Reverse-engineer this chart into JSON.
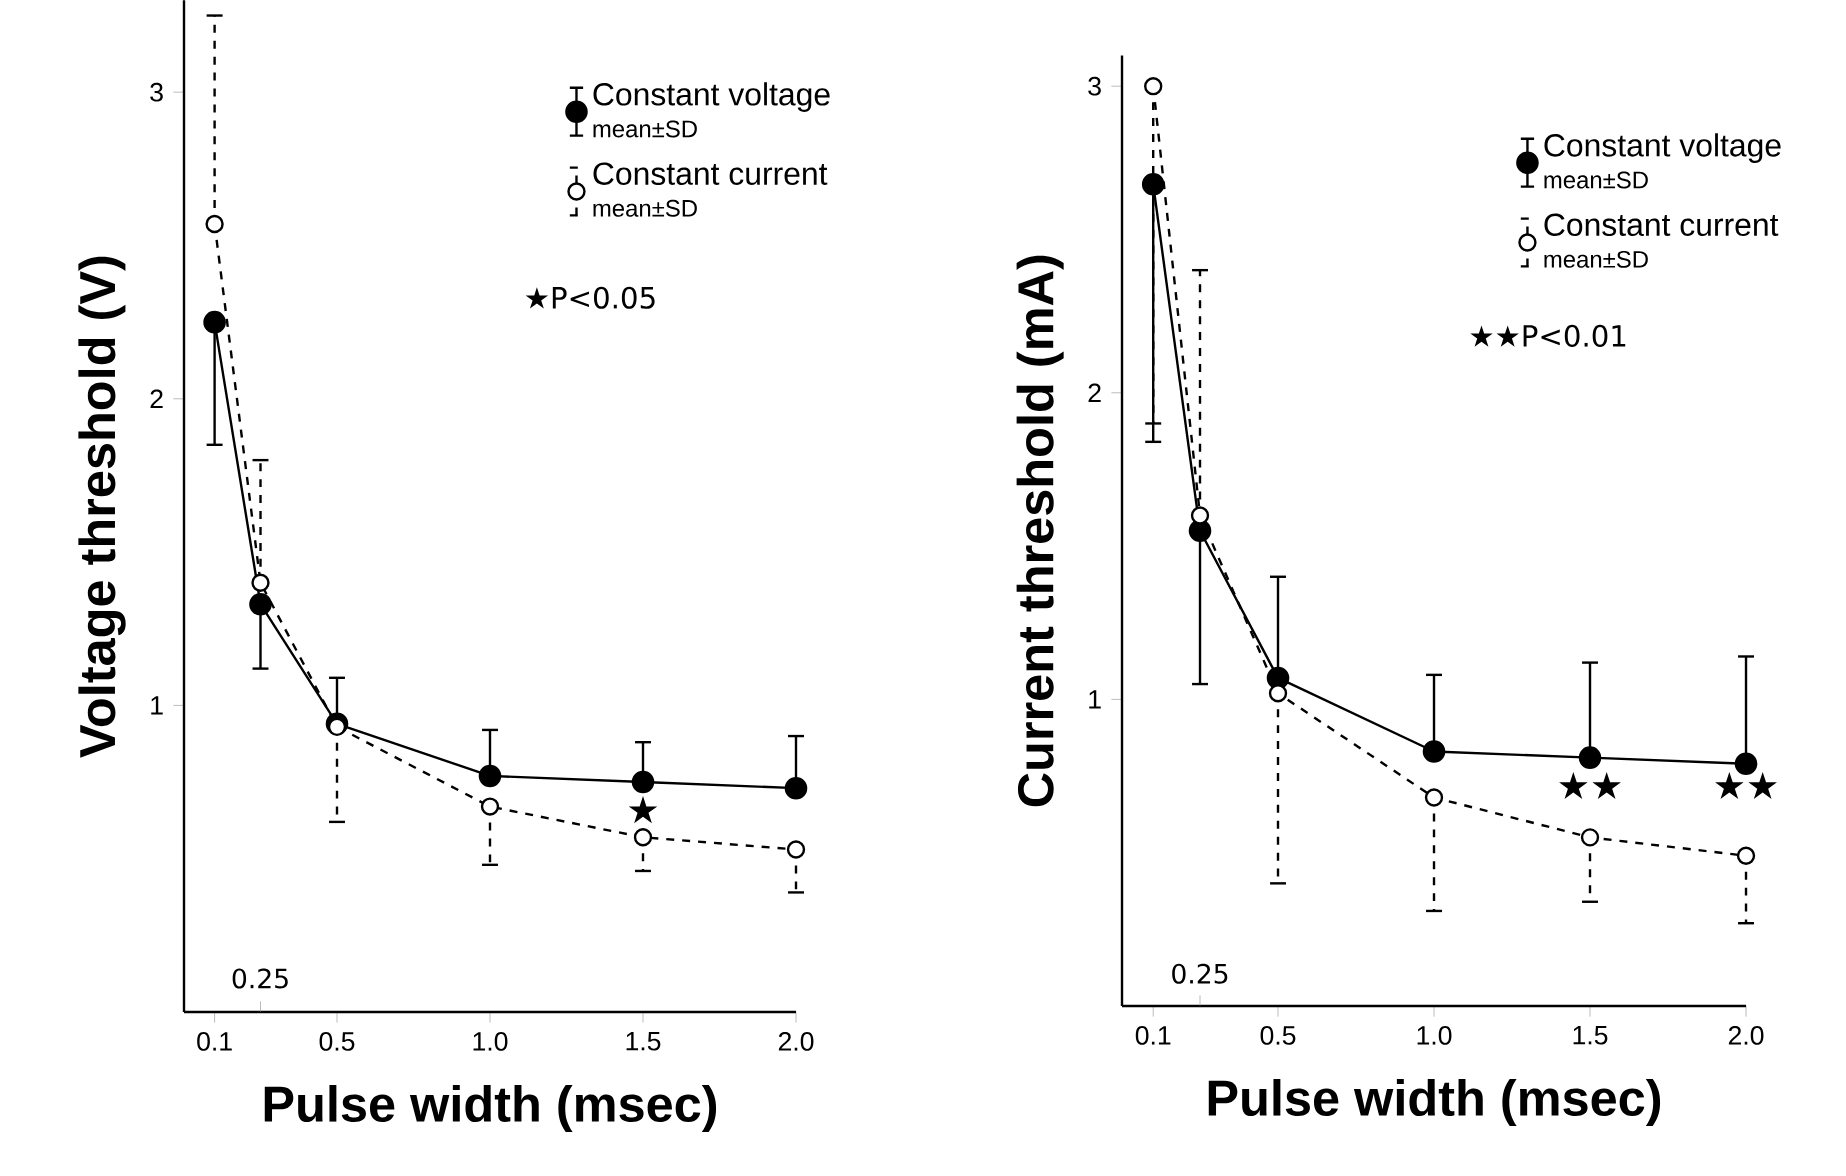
{
  "chart_data": [
    {
      "type": "line",
      "xlabel": "Pulse width (msec)",
      "ylabel": "Voltage threshold (V)",
      "xlim": [
        0,
        2.0
      ],
      "ylim": [
        0,
        3.3
      ],
      "xticks": [
        0.1,
        {
          "value": 0.25,
          "label": null
        },
        0.5,
        {
          "value": 1,
          "label": "1.0"
        },
        1.5,
        {
          "value": 2,
          "label": "2.0"
        }
      ],
      "yticks": [
        1,
        2,
        3
      ],
      "legend": "top right",
      "marker": "circle",
      "series": [
        {
          "name": "Constant voltage",
          "color": "#000000",
          "line_style": "solid",
          "x": [
            0.1,
            0.25,
            0.5,
            1.0,
            1.5,
            2.0
          ],
          "values": [
            2.25,
            1.33,
            0.94,
            0.77,
            0.75,
            0.73
          ],
          "errors": [
            [
              1.85,
              2.25
            ],
            [
              1.12,
              1.33
            ],
            [
              0.94,
              1.09
            ],
            [
              0.77,
              0.92
            ],
            [
              0.75,
              0.88
            ],
            [
              0.73,
              0.9
            ]
          ]
        },
        {
          "name": "Constant current",
          "color": "#000000",
          "line_style": "dashed",
          "x": [
            0.1,
            0.25,
            0.5,
            1.0,
            1.5,
            2.0
          ],
          "values": [
            2.57,
            1.4,
            0.93,
            0.67,
            0.57,
            0.53
          ],
          "errors": [
            [
              2.57,
              3.25
            ],
            [
              1.4,
              1.8
            ],
            [
              0.62,
              0.93
            ],
            [
              0.48,
              0.67
            ],
            [
              0.46,
              0.57
            ],
            [
              0.39,
              0.53
            ]
          ]
        }
      ],
      "annotations": [
        "mean±SD",
        "mean±SD",
        "★P<0.05",
        "0.25",
        "★"
      ]
    },
    {
      "type": "line",
      "xlabel": "Pulse width (msec)",
      "ylabel": "Current threshold (mA)",
      "xlim": [
        0,
        2.0
      ],
      "ylim": [
        0,
        3.1
      ],
      "xticks": [
        0.1,
        {
          "value": 0.25,
          "label": null
        },
        0.5,
        {
          "value": 1,
          "label": "1.0"
        },
        1.5,
        {
          "value": 2,
          "label": "2.0"
        }
      ],
      "yticks": [
        1,
        2,
        3
      ],
      "legend": "top right",
      "marker": "circle",
      "series": [
        {
          "name": "Constant voltage",
          "color": "#000000",
          "line_style": "solid",
          "x": [
            0.1,
            0.25,
            0.5,
            1.0,
            1.5,
            2.0
          ],
          "values": [
            2.68,
            1.55,
            1.07,
            0.83,
            0.81,
            0.79
          ],
          "errors": [
            [
              1.84,
              2.68
            ],
            [
              1.05,
              1.55
            ],
            [
              1.07,
              1.4
            ],
            [
              0.83,
              1.08
            ],
            [
              0.81,
              1.12
            ],
            [
              0.79,
              1.14
            ]
          ]
        },
        {
          "name": "Constant current",
          "color": "#000000",
          "line_style": "dashed",
          "x": [
            0.1,
            0.25,
            0.5,
            1.0,
            1.5,
            2.0
          ],
          "values": [
            3.0,
            1.6,
            1.02,
            0.68,
            0.55,
            0.49
          ],
          "errors": [
            [
              1.9,
              3.0
            ],
            [
              1.6,
              2.4
            ],
            [
              0.4,
              1.02
            ],
            [
              0.31,
              0.68
            ],
            [
              0.34,
              0.55
            ],
            [
              0.27,
              0.49
            ]
          ]
        }
      ],
      "annotations": [
        "mean±SD",
        "mean±SD",
        "★★P<0.01",
        "0.25",
        "★★",
        "★★"
      ]
    }
  ]
}
